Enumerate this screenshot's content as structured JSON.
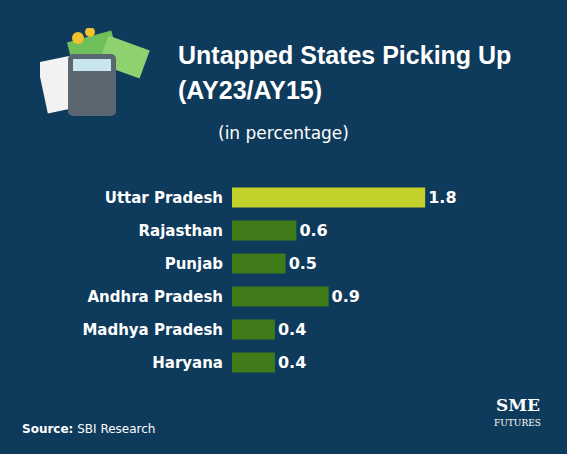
{
  "chart_data": {
    "type": "bar",
    "orientation": "horizontal",
    "title": "Untapped States Picking Up (AY23/AY15)",
    "subtitle": "(in percentage)",
    "categories": [
      "Uttar Pradesh",
      "Rajasthan",
      "Punjab",
      "Andhra Pradesh",
      "Madhya Pradesh",
      "Haryana"
    ],
    "values": [
      1.8,
      0.6,
      0.5,
      0.9,
      0.4,
      0.4
    ],
    "colors": [
      "#c5d12b",
      "#3f7b18",
      "#3f7b18",
      "#3f7b18",
      "#3f7b18",
      "#3f7b18"
    ],
    "data_labels": true,
    "tick_labels": "y",
    "grid": false,
    "source_label": "Source:",
    "source": "SBI Research",
    "logo_text": [
      "SME",
      "FUTURES"
    ]
  }
}
